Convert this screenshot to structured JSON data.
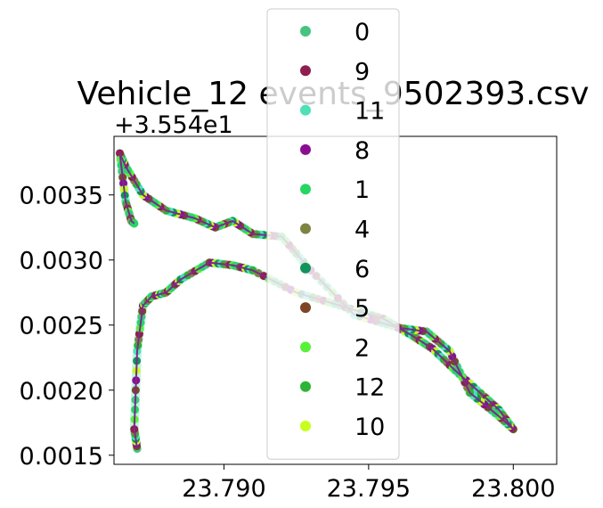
{
  "chart_data": {
    "type": "scatter",
    "title": "Vehicle_12 events_9502393.csv",
    "xlabel": "",
    "ylabel": "",
    "y_offset_label": "+3.554e1",
    "xlim": [
      23.7862,
      23.8015
    ],
    "ylim": [
      0.00143,
      0.00395
    ],
    "x_ticks": [
      23.79,
      23.795,
      23.8
    ],
    "x_tick_labels": [
      "23.790",
      "23.795",
      "23.800"
    ],
    "y_ticks": [
      0.0015,
      0.002,
      0.0025,
      0.003,
      0.0035
    ],
    "y_tick_labels": [
      "0.0015",
      "0.0020",
      "0.0025",
      "0.0030",
      "0.0035"
    ],
    "grid": false,
    "legend_position": "upper-center",
    "legend": [
      {
        "label": "0",
        "color": "#44c47e"
      },
      {
        "label": "9",
        "color": "#8e1f4e"
      },
      {
        "label": "11",
        "color": "#4ee0b8"
      },
      {
        "label": "8",
        "color": "#8a0e91"
      },
      {
        "label": "1",
        "color": "#26d663"
      },
      {
        "label": "4",
        "color": "#7d8442"
      },
      {
        "label": "6",
        "color": "#10935a"
      },
      {
        "label": "5",
        "color": "#7d4625"
      },
      {
        "label": "2",
        "color": "#59f03a"
      },
      {
        "label": "12",
        "color": "#2cb434"
      },
      {
        "label": "10",
        "color": "#c6ff1b"
      }
    ],
    "track": {
      "color": "#7a2a8c",
      "path": [
        [
          23.787,
          0.00155
        ],
        [
          23.7869,
          0.0017
        ],
        [
          23.787,
          0.0023
        ],
        [
          23.7872,
          0.00265
        ],
        [
          23.7875,
          0.00272
        ],
        [
          23.788,
          0.00275
        ],
        [
          23.7885,
          0.00285
        ],
        [
          23.7895,
          0.00298
        ],
        [
          23.7903,
          0.00296
        ],
        [
          23.791,
          0.00292
        ],
        [
          23.7925,
          0.00275
        ],
        [
          23.794,
          0.00265
        ],
        [
          23.7955,
          0.00255
        ],
        [
          23.7965,
          0.00242
        ],
        [
          23.7972,
          0.00232
        ],
        [
          23.798,
          0.00215
        ],
        [
          23.799,
          0.00195
        ],
        [
          23.7995,
          0.00185
        ],
        [
          23.8,
          0.0017
        ],
        [
          23.7995,
          0.0018
        ],
        [
          23.7985,
          0.00198
        ],
        [
          23.7978,
          0.0023
        ],
        [
          23.797,
          0.00245
        ],
        [
          23.796,
          0.00248
        ],
        [
          23.7945,
          0.00258
        ],
        [
          23.793,
          0.00292
        ],
        [
          23.792,
          0.00318
        ],
        [
          23.791,
          0.0032
        ],
        [
          23.7903,
          0.0033
        ],
        [
          23.7897,
          0.00325
        ],
        [
          23.789,
          0.00332
        ],
        [
          23.788,
          0.00338
        ],
        [
          23.7872,
          0.0035
        ],
        [
          23.7866,
          0.00372
        ],
        [
          23.7864,
          0.00382
        ],
        [
          23.7866,
          0.00345
        ],
        [
          23.7868,
          0.0033
        ],
        [
          23.7869,
          0.00328
        ]
      ]
    }
  }
}
